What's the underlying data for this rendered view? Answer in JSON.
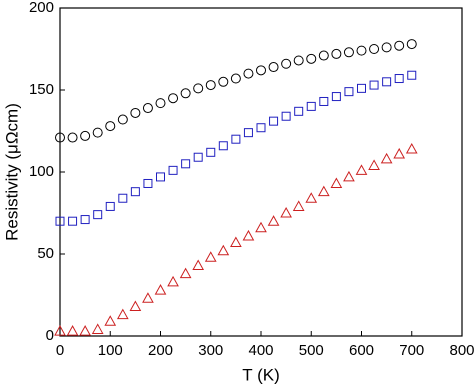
{
  "chart_data": {
    "type": "scatter",
    "xlabel": "T (K)",
    "ylabel": "Resistivity (μΩcm)",
    "xlim": [
      0,
      800
    ],
    "ylim": [
      0,
      200
    ],
    "xticks": [
      0,
      100,
      200,
      300,
      400,
      500,
      600,
      700,
      800
    ],
    "yticks": [
      0,
      50,
      100,
      150,
      200
    ],
    "x": [
      0,
      25,
      50,
      75,
      100,
      125,
      150,
      175,
      200,
      225,
      250,
      275,
      300,
      325,
      350,
      375,
      400,
      425,
      450,
      475,
      500,
      525,
      550,
      575,
      600,
      625,
      650,
      675,
      700
    ],
    "series": [
      {
        "color": "#000000",
        "marker": "circle",
        "values": [
          121,
          121,
          122,
          124,
          128,
          132,
          136,
          139,
          142,
          145,
          148,
          151,
          153,
          155,
          157,
          160,
          162,
          164,
          166,
          168,
          169,
          171,
          172,
          173,
          174,
          175,
          176,
          177,
          178
        ]
      },
      {
        "color": "#2020c0",
        "marker": "square",
        "values": [
          70,
          70,
          71,
          74,
          79,
          84,
          88,
          93,
          97,
          101,
          105,
          109,
          112,
          116,
          120,
          124,
          127,
          131,
          134,
          137,
          140,
          143,
          146,
          149,
          151,
          153,
          155,
          157,
          159
        ]
      },
      {
        "color": "#cc2020",
        "marker": "triangle",
        "values": [
          3,
          3,
          3,
          4,
          9,
          13,
          18,
          23,
          28,
          33,
          38,
          43,
          48,
          52,
          57,
          61,
          66,
          70,
          75,
          79,
          84,
          88,
          93,
          97,
          101,
          104,
          108,
          111,
          114
        ]
      }
    ]
  }
}
